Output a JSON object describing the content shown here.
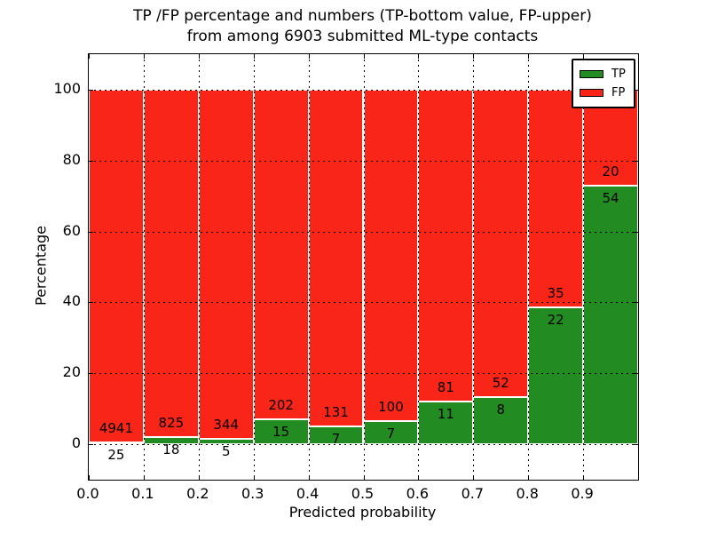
{
  "figure": {
    "title_line1": "TP /FP percentage and numbers (TP-bottom value, FP-upper)",
    "title_line2": "from among 6903 submitted ML-type contacts"
  },
  "chart_data": {
    "type": "bar",
    "stacked": true,
    "normalized_to_percent": true,
    "title": "TP /FP percentage and numbers (TP-bottom value, FP-upper)\nfrom among 6903 submitted ML-type contacts",
    "xlabel": "Predicted probability",
    "ylabel": "Percentage",
    "total_contacts": 6903,
    "xlim": [
      0.0,
      1.0
    ],
    "ylim": [
      -10,
      110
    ],
    "bar_width": 0.1,
    "bin_starts": [
      0.0,
      0.1,
      0.2,
      0.3,
      0.4,
      0.5,
      0.6,
      0.7,
      0.8,
      0.9
    ],
    "x_tick_labels": [
      "0.0",
      "0.1",
      "0.2",
      "0.3",
      "0.4",
      "0.5",
      "0.6",
      "0.7",
      "0.8",
      "0.9"
    ],
    "y_tick_labels": [
      "0",
      "20",
      "40",
      "60",
      "80",
      "100"
    ],
    "y_tick_values": [
      0,
      20,
      40,
      60,
      80,
      100
    ],
    "grid": "dotted",
    "legend_position": "upper right",
    "series": [
      {
        "name": "TP",
        "color": "#228b22",
        "counts": [
          25,
          18,
          5,
          15,
          7,
          7,
          11,
          8,
          22,
          54
        ]
      },
      {
        "name": "FP",
        "color": "#f92518",
        "counts": [
          4941,
          825,
          344,
          202,
          131,
          100,
          81,
          52,
          35,
          20
        ]
      }
    ],
    "tp_percent": [
      0.5,
      2.14,
      1.43,
      6.91,
      5.07,
      6.54,
      11.96,
      13.33,
      38.6,
      72.97
    ],
    "colors": {
      "tp": "#228b22",
      "fp": "#f92518",
      "bar_edge": "#ffffff",
      "grid": "#000000"
    }
  }
}
